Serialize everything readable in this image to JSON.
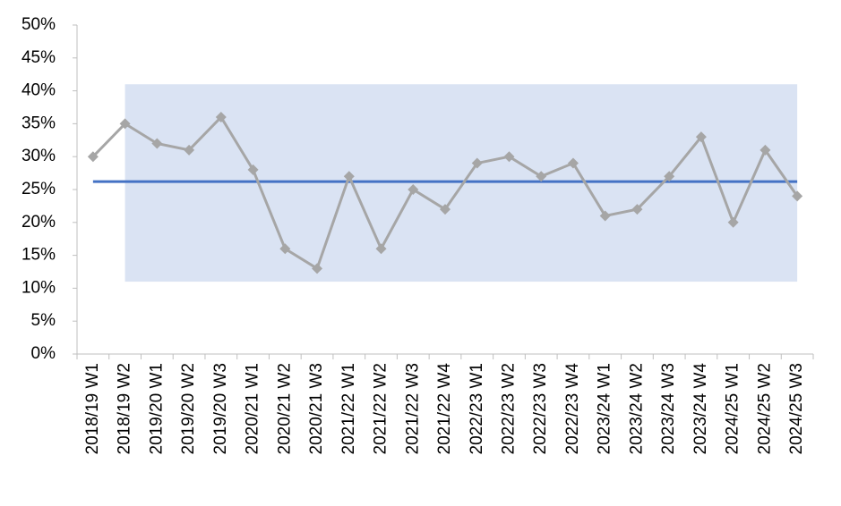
{
  "chart_data": {
    "type": "line",
    "categories": [
      "2018/19 W1",
      "2018/19 W2",
      "2019/20 W1",
      "2019/20 W2",
      "2019/20 W3",
      "2020/21 W1",
      "2020/21 W2",
      "2020/21 W3",
      "2021/22 W1",
      "2021/22 W2",
      "2021/22 W3",
      "2021/22 W4",
      "2022/23 W1",
      "2022/23 W2",
      "2022/23 W3",
      "2022/23 W4",
      "2023/24 W1",
      "2023/24 W2",
      "2023/24 W3",
      "2023/24 W4",
      "2024/25 W1",
      "2024/25 W2",
      "2024/25 W3"
    ],
    "values": [
      30,
      35,
      32,
      31,
      36,
      28,
      16,
      13,
      27,
      16,
      25,
      22,
      29,
      30,
      27,
      29,
      21,
      22,
      27,
      33,
      20,
      31,
      24
    ],
    "color": "#a6a6a6",
    "mean": 26.2,
    "mean_color": "#4472c4",
    "band": [
      11,
      41
    ],
    "band_color": "#dae3f3",
    "ylim": [
      0,
      50
    ],
    "yticks": [
      {
        "value": 0,
        "label": "0%"
      },
      {
        "value": 5,
        "label": "5%"
      },
      {
        "value": 10,
        "label": "10%"
      },
      {
        "value": 15,
        "label": "15%"
      },
      {
        "value": 20,
        "label": "20%"
      },
      {
        "value": 25,
        "label": "25%"
      },
      {
        "value": 30,
        "label": "30%"
      },
      {
        "value": 35,
        "label": "35%"
      },
      {
        "value": 40,
        "label": "40%"
      },
      {
        "value": 45,
        "label": "45%"
      },
      {
        "value": 50,
        "label": "50%"
      }
    ]
  }
}
